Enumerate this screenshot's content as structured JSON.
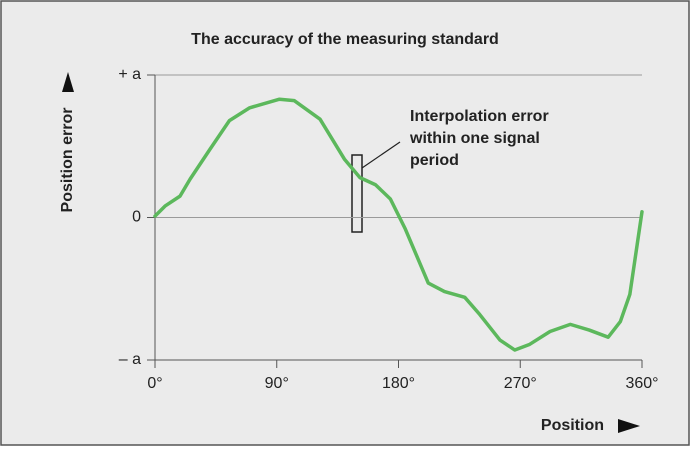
{
  "chart_data": {
    "type": "line",
    "title": "The accuracy of the measuring standard",
    "x_label": "Position",
    "y_label": "Position error",
    "annotation": [
      "Interpolation error",
      "within one signal",
      "period"
    ],
    "series": [
      {
        "color": "#5cb85c",
        "x": [
          0,
          7.4,
          18.5,
          26,
          40.7,
          55,
          70,
          92,
          103,
          122,
          140,
          151.5,
          163,
          174,
          185,
          202,
          214,
          229,
          240,
          255,
          266,
          277,
          292,
          307,
          321,
          335,
          344,
          351,
          360
        ],
        "values": [
          0.01,
          0.08,
          0.15,
          0.27,
          0.48,
          0.68,
          0.77,
          0.83,
          0.82,
          0.69,
          0.41,
          0.28,
          0.23,
          0.13,
          -0.08,
          -0.46,
          -0.52,
          -0.56,
          -0.68,
          -0.86,
          -0.93,
          -0.89,
          -0.8,
          -0.75,
          -0.79,
          -0.84,
          -0.73,
          -0.54,
          0.04
        ]
      }
    ],
    "xlim": [
      0,
      360
    ],
    "xticks": [
      {
        "value": 0,
        "label": "0°"
      },
      {
        "value": 90,
        "label": "90°"
      },
      {
        "value": 180,
        "label": "180°"
      },
      {
        "value": 270,
        "label": "270°"
      },
      {
        "value": 360,
        "label": "360°"
      }
    ],
    "ylim": [
      -1,
      1
    ],
    "yticks": [
      {
        "value": 1,
        "label": "+ a"
      },
      0,
      {
        "value": -1,
        "label": "– a"
      }
    ],
    "grid": true
  }
}
